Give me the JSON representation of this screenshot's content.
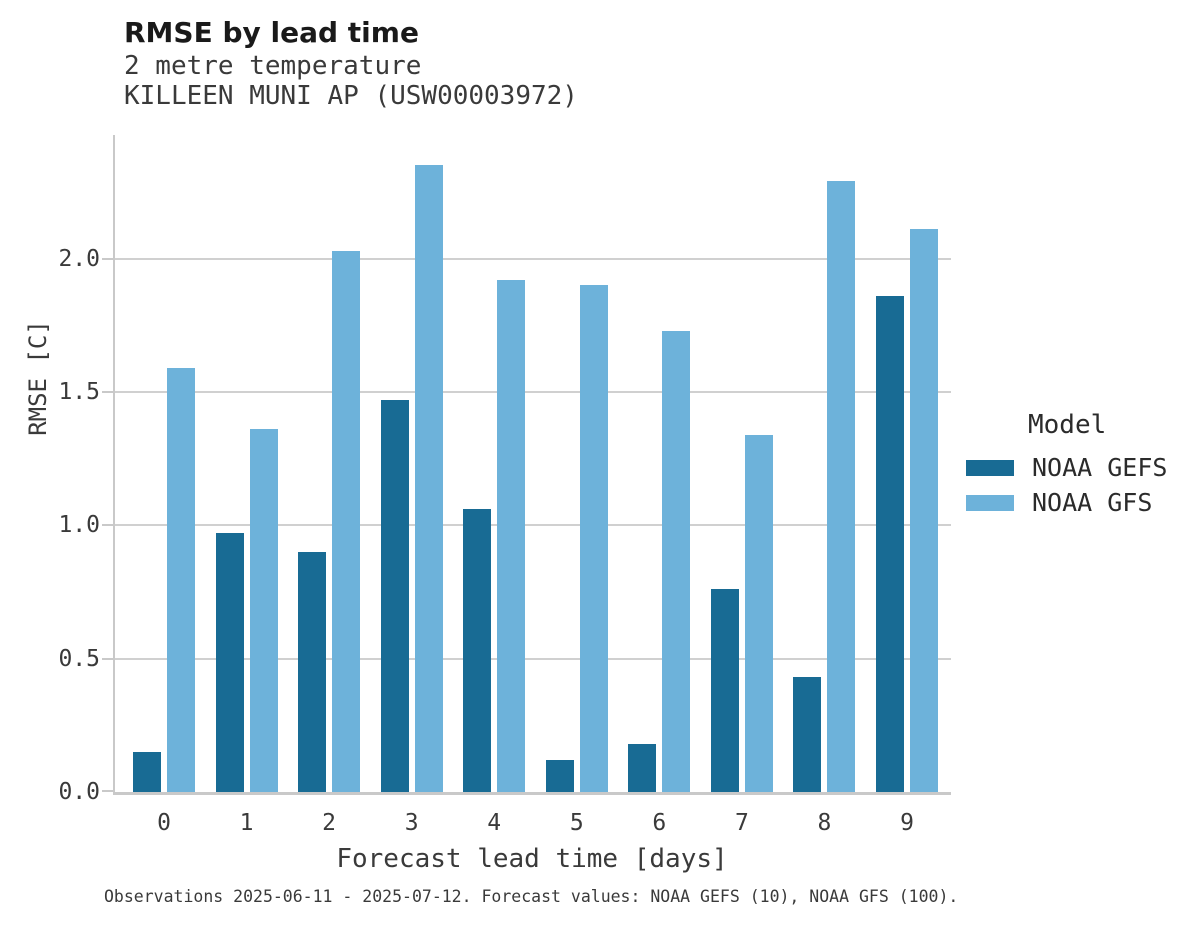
{
  "header": {
    "title": "RMSE by lead time",
    "subtitle_variable": "2 metre temperature",
    "subtitle_station": "KILLEEN MUNI AP (USW00003972)"
  },
  "legend": {
    "title": "Model",
    "entries": [
      {
        "label": "NOAA GEFS",
        "color": "#186b94"
      },
      {
        "label": "NOAA GFS",
        "color": "#6db2da"
      }
    ]
  },
  "caption": "Observations 2025-06-11 - 2025-07-12. Forecast values: NOAA GEFS (10), NOAA GFS (100).",
  "chart_data": {
    "type": "bar",
    "categories": [
      "0",
      "1",
      "2",
      "3",
      "4",
      "5",
      "6",
      "7",
      "8",
      "9"
    ],
    "series": [
      {
        "name": "NOAA GEFS",
        "color": "#186b94",
        "values": [
          0.15,
          0.97,
          0.9,
          1.47,
          1.06,
          0.12,
          0.18,
          0.76,
          0.43,
          1.86
        ]
      },
      {
        "name": "NOAA GFS",
        "color": "#6db2da",
        "values": [
          1.59,
          1.36,
          2.03,
          2.35,
          1.92,
          1.9,
          1.73,
          1.34,
          2.29,
          2.11
        ]
      }
    ],
    "title": "RMSE by lead time",
    "xlabel": "Forecast lead time [days]",
    "ylabel": "RMSE [C]",
    "ylim": [
      0,
      2.46
    ],
    "yticks": [
      0.0,
      0.5,
      1.0,
      1.5,
      2.0
    ],
    "ytick_labels": [
      "0.0",
      "0.5",
      "1.0",
      "1.5",
      "2.0"
    ],
    "grid": true,
    "grid_color": "#d0d0d0",
    "legend_position": "center right"
  }
}
